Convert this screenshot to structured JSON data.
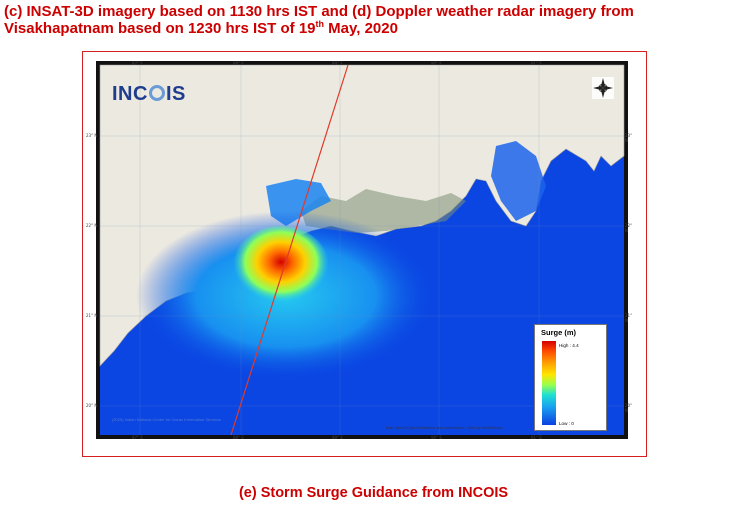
{
  "caption_top": {
    "line1": "(c) INSAT-3D imagery based on 1130 hrs IST and (d) Doppler weather radar imagery from",
    "line2_a": "Visakhapatnam based on 1230 hrs IST of 19",
    "line2_sup": "th",
    "line2_b": " May, 2020"
  },
  "map": {
    "logo_a": "INC",
    "logo_b": "IS",
    "lon_ticks": [
      "87° E",
      "88° E",
      "89° E",
      "90° E",
      "91° E"
    ],
    "lat_ticks": [
      "23° N",
      "22° N",
      "21° N",
      "20° N"
    ],
    "copyright": "(2020) Indian National Centre for Ocean Information Services",
    "attribution": "Map data ©OpenStreetMap and contributors, Tiles by Esri/Stamen",
    "legend": {
      "title": "Surge (m)",
      "high_label": "High : 4.4",
      "low_label": "Low : 0",
      "high_value": 4.4,
      "low_value": 0,
      "colors": [
        "#d40000",
        "#ff9a00",
        "#ffe600",
        "#9bff4c",
        "#20e0d0",
        "#18a4f0",
        "#0b40e0"
      ]
    },
    "colors": {
      "sea": "#0b46e3",
      "land": "#ece9e0",
      "track": "#e03a2a"
    }
  },
  "caption_bottom": "(e) Storm Surge Guidance from INCOIS"
}
